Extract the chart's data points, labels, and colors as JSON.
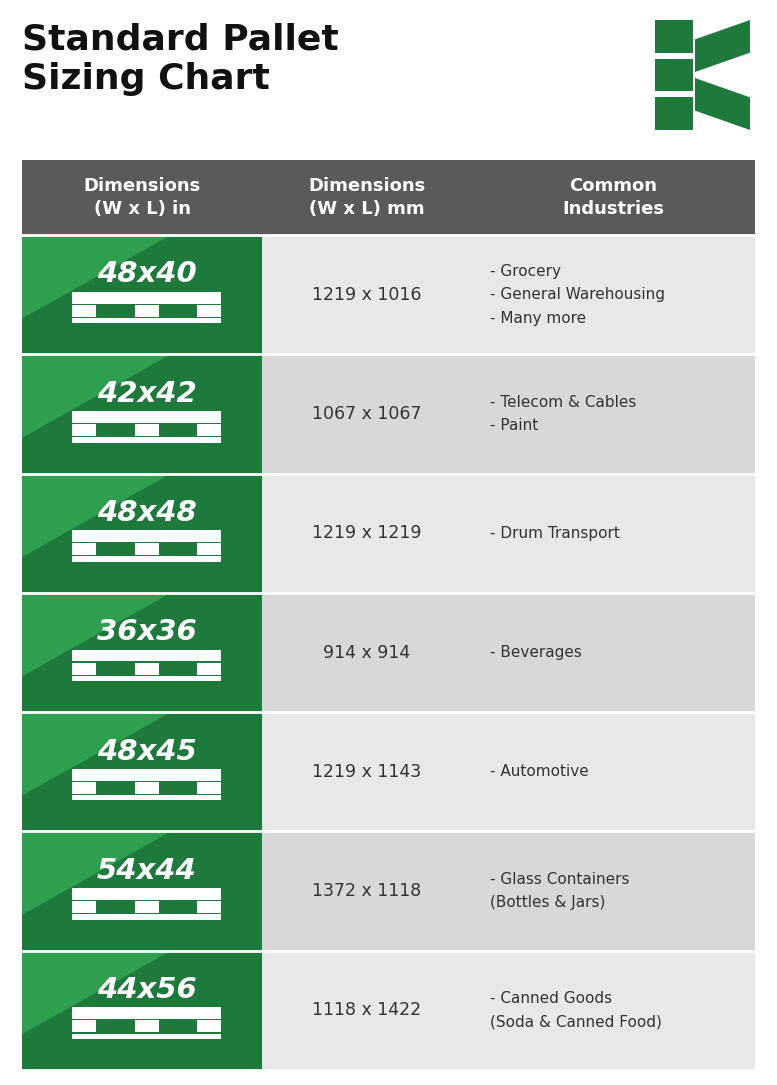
{
  "title_line1": "Standard Pallet",
  "title_line2": "Sizing Chart",
  "bg_color": "#ffffff",
  "header_bg": "#5a5a5a",
  "header_text_color": "#ffffff",
  "row_bg_even": "#e8e8e8",
  "row_bg_odd": "#d8d8d8",
  "green_dark": "#1e7a3c",
  "green_shadow": "#155a2c",
  "green_highlight": "#2ea050",
  "col1_header": "Dimensions\n(W x L) in",
  "col2_header": "Dimensions\n(W x L) mm",
  "col3_header": "Common\nIndustries",
  "rows": [
    {
      "dim_in": "48x40",
      "dim_mm": "1219 x 1016",
      "industries": "- Grocery\n- General Warehousing\n- Many more"
    },
    {
      "dim_in": "42x42",
      "dim_mm": "1067 x 1067",
      "industries": "- Telecom & Cables\n- Paint"
    },
    {
      "dim_in": "48x48",
      "dim_mm": "1219 x 1219",
      "industries": "- Drum Transport"
    },
    {
      "dim_in": "36x36",
      "dim_mm": "914 x 914",
      "industries": "- Beverages"
    },
    {
      "dim_in": "48x45",
      "dim_mm": "1219 x 1143",
      "industries": "- Automotive"
    },
    {
      "dim_in": "54x44",
      "dim_mm": "1372 x 1118",
      "industries": "- Glass Containers\n(Bottles & Jars)"
    },
    {
      "dim_in": "44x56",
      "dim_mm": "1118 x 1422",
      "industries": "- Canned Goods\n(Soda & Canned Food)"
    }
  ]
}
